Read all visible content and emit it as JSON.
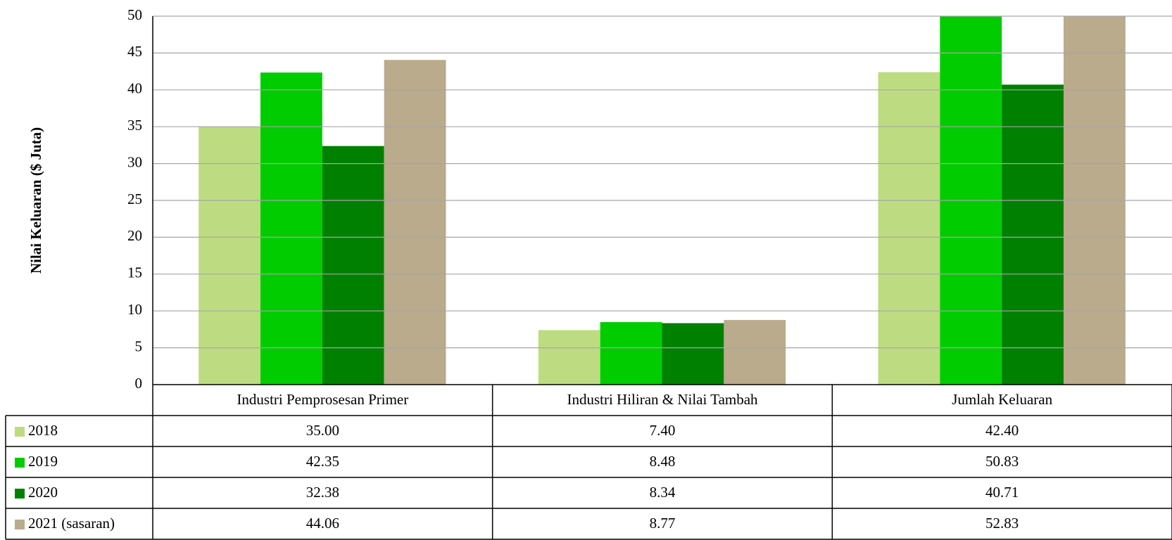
{
  "chart_data": {
    "type": "bar",
    "y_label": "Nilai Keluaran ($ Juta)",
    "categories": [
      "Industri Pemprosesan Primer",
      "Industri Hiliran & Nilai Tambah",
      "Jumlah Keluaran"
    ],
    "series": [
      {
        "name": "2018",
        "color": "#bddc82",
        "values": [
          35.0,
          7.4,
          42.4
        ],
        "value_labels": [
          "35.00",
          "7.40",
          "42.40"
        ]
      },
      {
        "name": "2019",
        "color": "#00cc00",
        "values": [
          42.35,
          8.48,
          50.83
        ],
        "value_labels": [
          "42.35",
          "8.48",
          "50.83"
        ]
      },
      {
        "name": "2020",
        "color": "#008000",
        "values": [
          32.38,
          8.34,
          40.71
        ],
        "value_labels": [
          "32.38",
          "8.34",
          "40.71"
        ]
      },
      {
        "name": "2021 (sasaran)",
        "color": "#b9ab8b",
        "values": [
          44.06,
          8.77,
          52.83
        ],
        "value_labels": [
          "44.06",
          "8.77",
          "52.83"
        ]
      }
    ],
    "ylim": [
      0,
      50
    ],
    "yticks": [
      0,
      5,
      10,
      15,
      20,
      25,
      30,
      35,
      40,
      45,
      50
    ],
    "grid": true
  }
}
